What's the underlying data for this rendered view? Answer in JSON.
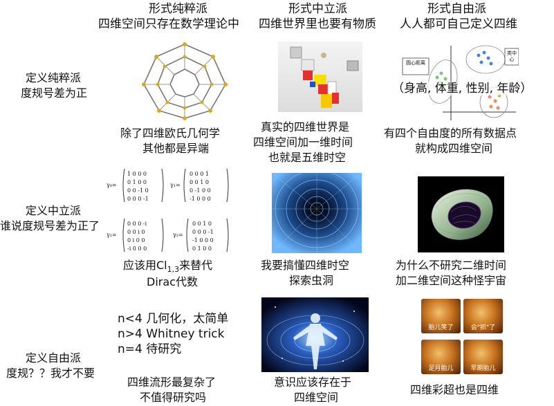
{
  "columns": [
    {
      "title": "形式纯粹派",
      "subtitle": "四维空间只存在数学理论中"
    },
    {
      "title": "形式中立派",
      "subtitle": "四维世界里也要有物质"
    },
    {
      "title": "形式自由派",
      "subtitle": "人人都可自己定义四维"
    }
  ],
  "rows": [
    {
      "line1": "定义纯粹派",
      "line2": "度规号差为正"
    },
    {
      "line1": "定义中立派",
      "line2": "谁说度规号差为正了"
    },
    {
      "line1": "定义自由派",
      "line2": "度规？？我才不要"
    }
  ],
  "cells": {
    "r1c1": {
      "line1": "除了四维欧氏几何学",
      "line2": "其他都是异端"
    },
    "r1c2": {
      "line1": "真实的四维世界是",
      "line2": "四维空间加一维时间",
      "line3": "也就是五维时空"
    },
    "r1c3": {
      "line1": "有四个自由度的所有数据点",
      "line2": "就构成四维空间",
      "image_caption": "（身高, 体重, 性别, 年龄）",
      "cluster_label_1": "圆心距离",
      "cluster_label_2": "类中心"
    },
    "r2c1": {
      "line1_prefix": "应该用Cl",
      "line1_sub": "1,3",
      "line1_suffix": "来替代",
      "line2": "Dirac代数"
    },
    "r2c2": {
      "line1": "我要搞懂四维时空",
      "line2": "探索虫洞"
    },
    "r2c3": {
      "line1": "为什么不研究二维时间",
      "line2": "加二维空间这种怪宇宙"
    },
    "r3c1": {
      "list": [
        "n<4 几何化，太简单",
        "n>4 Whitney trick",
        "n=4 待研究"
      ],
      "line1": "四维流形最复杂了",
      "line2": "不值得研究吗"
    },
    "r3c2": {
      "line1": "意识应该存在于",
      "line2": "四维空间"
    },
    "r3c3": {
      "line1": "四维彩超也是四维",
      "photo_labels": [
        "胎儿笑了",
        "会\"抓\"了",
        "足月胎儿",
        "早期胎儿"
      ]
    }
  },
  "matrices": {
    "label_1": "γ₀=",
    "label_2": "γ₁=",
    "label_3": "γ₂=",
    "label_4": "γ₃=",
    "m1": [
      "1 0 0 0",
      "0 1 0 0",
      "0 0 -1 0",
      "0 0 0 -1"
    ],
    "m2": [
      "0 0 0 1",
      "0 0 1 0",
      "0 -1 0 0",
      "-1 0 0 0"
    ],
    "m3": [
      "0 0 0 -i",
      "0 0 i 0",
      "0 i 0 0",
      "-i 0 0 0"
    ],
    "m4": [
      "0 0 1 0",
      "0 0 0 -1",
      "-1 0 0 0",
      "0 1 0 0"
    ]
  }
}
